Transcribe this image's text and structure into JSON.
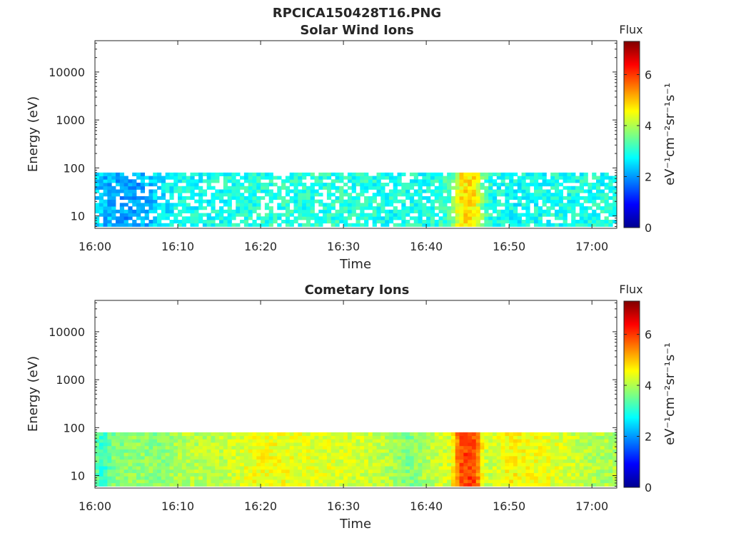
{
  "figure": {
    "title": "RPCICA150428T16.PNG"
  },
  "chart_data": [
    {
      "type": "heatmap",
      "title": "Solar Wind Ions",
      "xlabel": "Time",
      "ylabel": "Energy (eV)",
      "x_scale": "time",
      "y_scale": "log",
      "xlim": [
        "16:00",
        "17:03"
      ],
      "ylim": [
        5.5,
        45000
      ],
      "x_ticks": [
        "16:00",
        "16:10",
        "16:20",
        "16:30",
        "16:40",
        "16:50",
        "17:00"
      ],
      "y_ticks": [
        10,
        100,
        1000,
        10000
      ],
      "y_tick_labels": [
        "10",
        "100",
        "1000",
        "10000"
      ],
      "data_energy_range": [
        6,
        80
      ],
      "colorbar": {
        "title": "Flux",
        "label": "eV⁻¹cm⁻²sr⁻¹s⁻¹",
        "range": [
          0,
          7.3
        ],
        "ticks": [
          0,
          2,
          4,
          6
        ],
        "colormap": "jet"
      },
      "flux_profile": {
        "times": [
          "16:00",
          "16:02",
          "16:04",
          "16:06",
          "16:08",
          "16:10",
          "16:15",
          "16:20",
          "16:25",
          "16:30",
          "16:35",
          "16:40",
          "16:43",
          "16:44",
          "16:45",
          "16:46",
          "16:47",
          "16:48",
          "16:50",
          "16:55",
          "17:00",
          "17:03"
        ],
        "flux": [
          2.4,
          2.2,
          2.0,
          2.2,
          2.6,
          2.8,
          2.9,
          3.0,
          3.0,
          3.0,
          2.9,
          2.9,
          3.2,
          4.6,
          4.8,
          4.6,
          3.3,
          2.9,
          2.8,
          2.9,
          2.9,
          2.9
        ]
      }
    },
    {
      "type": "heatmap",
      "title": "Cometary Ions",
      "xlabel": "Time",
      "ylabel": "Energy (eV)",
      "x_scale": "time",
      "y_scale": "log",
      "xlim": [
        "16:00",
        "17:03"
      ],
      "ylim": [
        5.5,
        45000
      ],
      "x_ticks": [
        "16:00",
        "16:10",
        "16:20",
        "16:30",
        "16:40",
        "16:50",
        "17:00"
      ],
      "y_ticks": [
        10,
        100,
        1000,
        10000
      ],
      "y_tick_labels": [
        "10",
        "100",
        "1000",
        "10000"
      ],
      "data_energy_range": [
        6,
        80
      ],
      "colorbar": {
        "title": "Flux",
        "label": "eV⁻¹cm⁻²sr⁻¹s⁻¹",
        "range": [
          0,
          7.3
        ],
        "ticks": [
          0,
          2,
          4,
          6
        ],
        "colormap": "jet"
      },
      "flux_profile": {
        "times": [
          "16:00",
          "16:01",
          "16:02",
          "16:05",
          "16:08",
          "16:10",
          "16:15",
          "16:20",
          "16:25",
          "16:30",
          "16:35",
          "16:38",
          "16:40",
          "16:43",
          "16:44",
          "16:45",
          "16:46",
          "16:47",
          "16:48",
          "16:50",
          "16:55",
          "17:00",
          "17:03"
        ],
        "flux": [
          3.5,
          3.0,
          3.6,
          3.8,
          3.7,
          4.0,
          4.1,
          4.5,
          4.4,
          4.3,
          4.1,
          3.6,
          4.0,
          4.3,
          5.8,
          6.0,
          5.8,
          4.2,
          4.2,
          4.6,
          4.4,
          4.0,
          4.0
        ]
      }
    }
  ]
}
